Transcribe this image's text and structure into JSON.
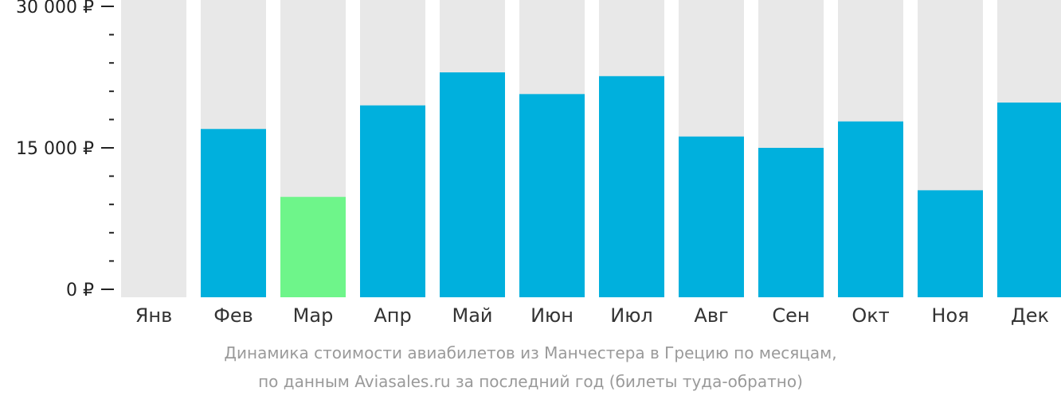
{
  "colors": {
    "background_bar": "#e8e8e8",
    "bar": "#00b0dd",
    "highlight_bar": "#6ef58a",
    "axis": "#222222"
  },
  "caption": {
    "line1": "Динамика стоимости авиабилетов из Манчестера в Грецию по месяцам,",
    "line2": "по данным Aviasales.ru за последний год (билеты туда-обратно)"
  },
  "chart_data": {
    "type": "bar",
    "categories": [
      "Янв",
      "Фев",
      "Мар",
      "Апр",
      "Май",
      "Июн",
      "Июл",
      "Авг",
      "Сен",
      "Окт",
      "Ноя",
      "Дек"
    ],
    "values": [
      null,
      17000,
      9800,
      19500,
      23000,
      20700,
      22600,
      16200,
      15000,
      17800,
      10500,
      19800
    ],
    "highlight_category": "Мар",
    "ylim": [
      0,
      30000
    ],
    "y_ticks": [
      {
        "value": 0,
        "label": "0 ₽"
      },
      {
        "value": 15000,
        "label": "15 000 ₽"
      },
      {
        "value": 30000,
        "label": "30 000 ₽"
      }
    ],
    "y_minor_ticks": [
      3000,
      6000,
      9000,
      12000,
      18000,
      21000,
      24000,
      27000
    ],
    "grid": false,
    "legend": "none"
  }
}
